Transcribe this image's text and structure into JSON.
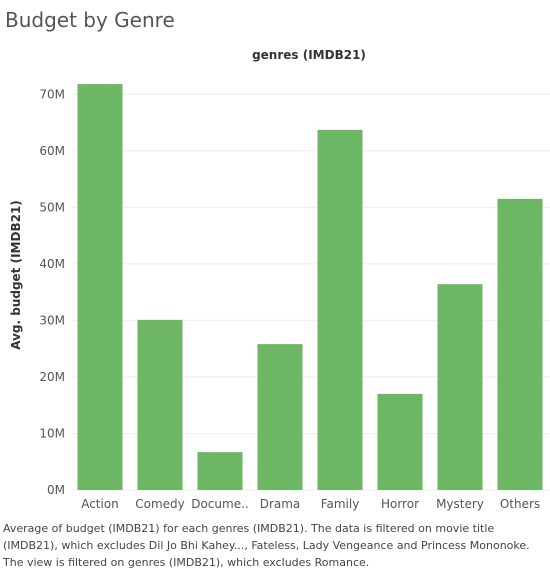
{
  "page": {
    "title": "Budget by Genre",
    "caption": "Average of budget (IMDB21) for each genres (IMDB21). The data is filtered on movie title (IMDB21), which excludes Dil Jo Bhi Kahey..., Fateless, Lady Vengeance and Princess Mononoke. The view is filtered on genres (IMDB21), which excludes Romance."
  },
  "chart_data": {
    "type": "bar",
    "title": "",
    "header": "genres (IMDB21)",
    "xlabel": "",
    "ylabel": "Avg. budget (IMDB21)",
    "categories": [
      "Action",
      "Comedy",
      "Docume..",
      "Drama",
      "Family",
      "Horror",
      "Mystery",
      "Others"
    ],
    "values": [
      71800000,
      30100000,
      6700000,
      25800000,
      63700000,
      17000000,
      36400000,
      51500000
    ],
    "ylim": [
      0,
      75000000
    ],
    "yticks": [
      0,
      10000000,
      20000000,
      30000000,
      40000000,
      50000000,
      60000000,
      70000000
    ],
    "ytick_labels": [
      "0M",
      "10M",
      "20M",
      "30M",
      "40M",
      "50M",
      "60M",
      "70M"
    ],
    "grid": true,
    "bar_color": "#6db664",
    "grid_color": "#eeeeee"
  }
}
